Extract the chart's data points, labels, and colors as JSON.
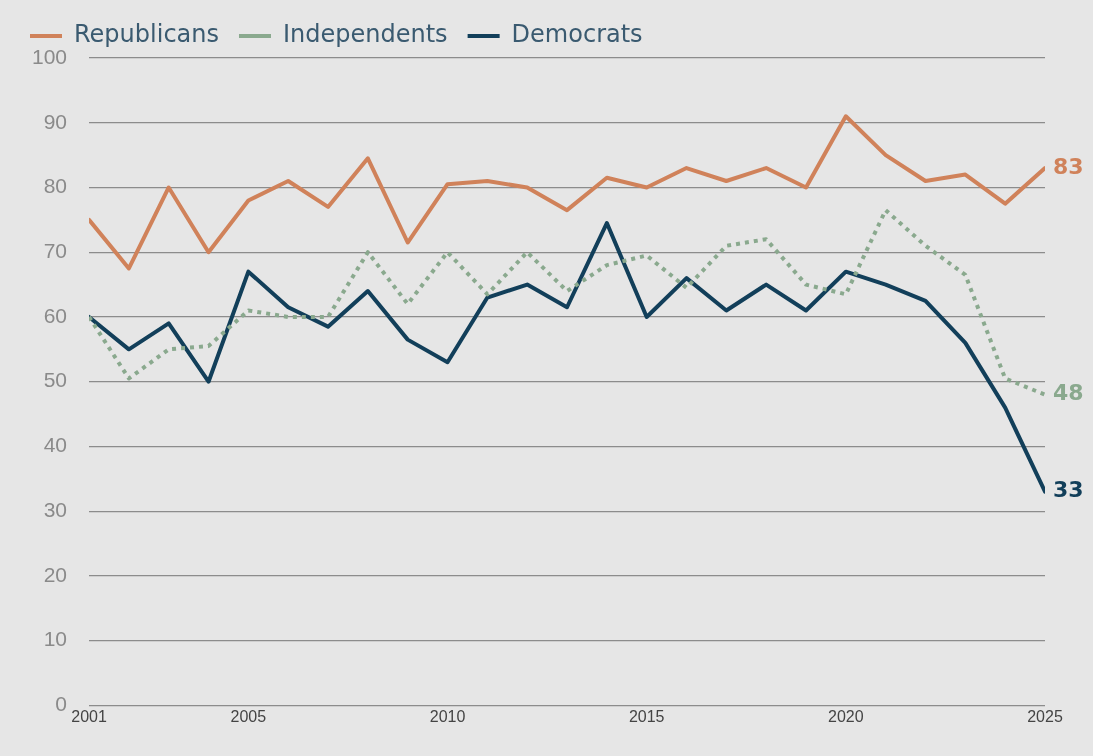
{
  "chart_data": {
    "type": "line",
    "x": [
      2001,
      2002,
      2003,
      2004,
      2005,
      2006,
      2007,
      2008,
      2009,
      2010,
      2011,
      2012,
      2013,
      2014,
      2015,
      2016,
      2017,
      2018,
      2019,
      2020,
      2021,
      2022,
      2023,
      2024,
      2025
    ],
    "series": [
      {
        "name": "Republicans",
        "color": "#d0825a",
        "line_style": "solid",
        "values": [
          75,
          67.5,
          80,
          70,
          78,
          81,
          77,
          84.5,
          71.5,
          80.5,
          81,
          80,
          76.5,
          81.5,
          80,
          83,
          81,
          83,
          80,
          91,
          85,
          81,
          82,
          77.5,
          83
        ],
        "value_labels": [
          null,
          null,
          null,
          null,
          null,
          null,
          null,
          null,
          null,
          null,
          null,
          null,
          null,
          null,
          null,
          null,
          null,
          null,
          null,
          null,
          null,
          null,
          null,
          null,
          "83"
        ]
      },
      {
        "name": "Independents",
        "color": "#8aa98e",
        "line_style": "dotted",
        "values": [
          60,
          50.5,
          55,
          55.5,
          61,
          60,
          60,
          70,
          62,
          70,
          63.5,
          70,
          64,
          68,
          69.5,
          64.5,
          71,
          72,
          65,
          63.5,
          76.5,
          71,
          66.5,
          50.5,
          48
        ],
        "value_labels": [
          null,
          null,
          null,
          null,
          null,
          null,
          null,
          null,
          null,
          null,
          null,
          null,
          null,
          null,
          null,
          null,
          null,
          null,
          null,
          null,
          null,
          null,
          null,
          null,
          "48"
        ]
      },
      {
        "name": "Democrats",
        "color": "#123f5a",
        "line_style": "solid",
        "values": [
          60,
          55,
          59,
          50,
          67,
          61.5,
          58.5,
          64,
          56.5,
          53,
          63,
          65,
          61.5,
          74.5,
          60,
          66,
          61,
          65,
          61,
          67,
          65,
          62.5,
          56,
          46,
          33
        ],
        "value_labels": [
          null,
          null,
          null,
          null,
          null,
          null,
          null,
          null,
          null,
          null,
          null,
          null,
          null,
          null,
          null,
          null,
          null,
          null,
          null,
          null,
          null,
          null,
          null,
          null,
          "33"
        ]
      }
    ],
    "xlim": [
      2001,
      2025
    ],
    "xticks": [
      2001,
      2005,
      2010,
      2015,
      2020,
      2025
    ],
    "ylim": [
      0,
      100
    ],
    "yticks": [
      0,
      10,
      20,
      30,
      40,
      50,
      60,
      70,
      80,
      90,
      100
    ],
    "grid": "y",
    "legend": "top left",
    "marker": "none"
  }
}
